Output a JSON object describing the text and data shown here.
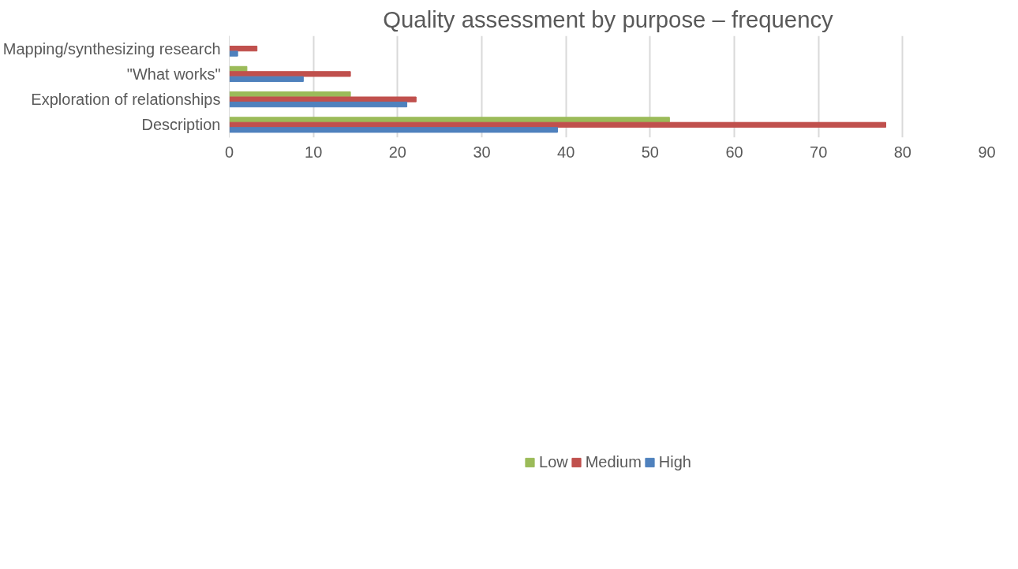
{
  "chart_data": {
    "type": "bar",
    "orientation": "horizontal",
    "title": "Quality assessment by purpose – frequency",
    "categories": [
      "Mapping/synthesizing research",
      "\"What works\"",
      "Exploration of relationships",
      "Description"
    ],
    "series": [
      {
        "name": "Low",
        "color": "#9bbb59",
        "values": [
          null,
          2.1,
          14.4,
          52.3
        ]
      },
      {
        "name": "Medium",
        "color": "#c0504d",
        "values": [
          3.3,
          14.4,
          22.2,
          78.0
        ]
      },
      {
        "name": "High",
        "color": "#4f81bd",
        "values": [
          1.0,
          8.8,
          21.1,
          39.0
        ]
      }
    ],
    "xlim": [
      0,
      90
    ],
    "xticks": [
      0,
      10,
      20,
      30,
      40,
      50,
      60,
      70,
      80,
      90
    ],
    "grid": "x",
    "legend": "bottom"
  }
}
